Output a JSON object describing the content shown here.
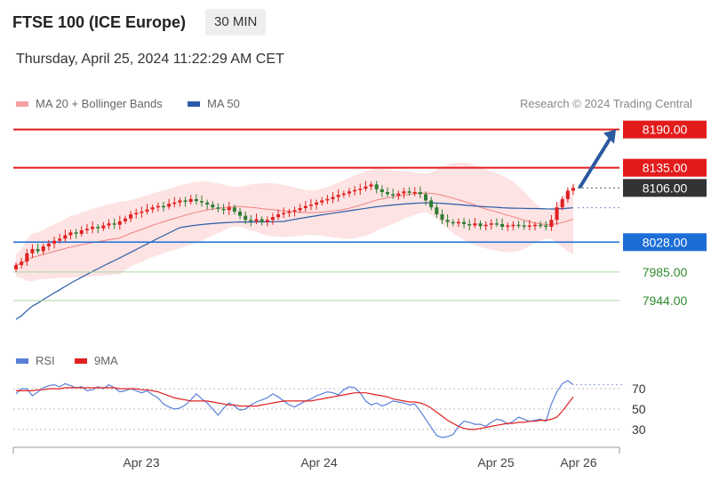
{
  "header": {
    "title": "FTSE 100 (ICE Europe)",
    "interval": "30 MIN",
    "timestamp": "Thursday, April 25, 2024 11:22:29 AM CET",
    "credit": "Research © 2024 Trading Central"
  },
  "legend": {
    "ma20": {
      "label": "MA 20 + Bollinger Bands",
      "color": "#f08080"
    },
    "ma50": {
      "label": "MA 50",
      "color": "#2a5ca8"
    },
    "rsi": {
      "label": "RSI",
      "color": "#5b7fd8"
    },
    "rsi_ma": {
      "label": "9MA",
      "color": "#e02020"
    }
  },
  "chart_data": [
    {
      "type": "candlestick",
      "y_range": [
        7880,
        8210
      ],
      "x_ticks": [
        "Apr 23",
        "Apr 24",
        "Apr 25",
        "Apr 26"
      ],
      "levels": [
        {
          "value": 8190,
          "label": "8190.00",
          "kind": "resistance",
          "color": "#e31b1b"
        },
        {
          "value": 8135,
          "label": "8135.00",
          "kind": "resistance",
          "color": "#e31b1b"
        },
        {
          "value": 8106,
          "label": "8106.00",
          "kind": "last",
          "color": "#333333"
        },
        {
          "value": 8028,
          "label": "8028.00",
          "kind": "pivot",
          "color": "#1c6ed6"
        },
        {
          "value": 7985,
          "label": "7985.00",
          "kind": "support",
          "color": "#2e8b2e"
        },
        {
          "value": 7944,
          "label": "7944.00",
          "kind": "support",
          "color": "#2e8b2e"
        }
      ],
      "arrow": {
        "from": 8106,
        "to": 8190,
        "direction": "up"
      },
      "colors": {
        "up": "#e02020",
        "down": "#2e7d32"
      }
    },
    {
      "type": "line",
      "name": "RSI",
      "y_ticks": [
        30,
        50,
        70
      ],
      "y_range": [
        15,
        85
      ],
      "series": [
        {
          "name": "RSI",
          "values": [
            65,
            70,
            70,
            63,
            67,
            71,
            73,
            74,
            72,
            75,
            73,
            71,
            72,
            68,
            69,
            72,
            70,
            74,
            71,
            67,
            68,
            70,
            68,
            66,
            68,
            64,
            61,
            55,
            52,
            50,
            51,
            54,
            59,
            65,
            60,
            56,
            50,
            44,
            51,
            56,
            53,
            49,
            50,
            54,
            57,
            59,
            61,
            65,
            62,
            58,
            54,
            52,
            55,
            58,
            60,
            63,
            65,
            67,
            66,
            64,
            69,
            72,
            71,
            66,
            58,
            54,
            56,
            53,
            55,
            58,
            57,
            56,
            54,
            55,
            48,
            40,
            32,
            24,
            22,
            23,
            25,
            33,
            38,
            37,
            35,
            35,
            33,
            37,
            40,
            39,
            35,
            38,
            42,
            40,
            38,
            39,
            40,
            38,
            55,
            67,
            75,
            78,
            74
          ]
        },
        {
          "name": "9MA",
          "values": [
            68,
            68,
            68,
            68,
            69,
            69,
            70,
            70,
            70,
            71,
            71,
            71,
            71,
            71,
            71,
            71,
            71,
            71,
            71,
            70,
            70,
            70,
            70,
            69,
            69,
            68,
            67,
            65,
            63,
            61,
            60,
            59,
            58,
            58,
            58,
            58,
            57,
            56,
            55,
            54,
            54,
            53,
            53,
            53,
            53,
            54,
            55,
            56,
            57,
            58,
            58,
            58,
            58,
            58,
            58,
            59,
            60,
            61,
            62,
            63,
            64,
            65,
            66,
            66,
            66,
            65,
            64,
            63,
            62,
            60,
            59,
            58,
            57,
            57,
            56,
            54,
            51,
            47,
            43,
            39,
            36,
            33,
            31,
            30,
            30,
            31,
            32,
            33,
            34,
            35,
            36,
            36,
            37,
            37,
            38,
            38,
            39,
            39,
            40,
            42,
            48,
            55,
            62
          ]
        }
      ]
    }
  ]
}
